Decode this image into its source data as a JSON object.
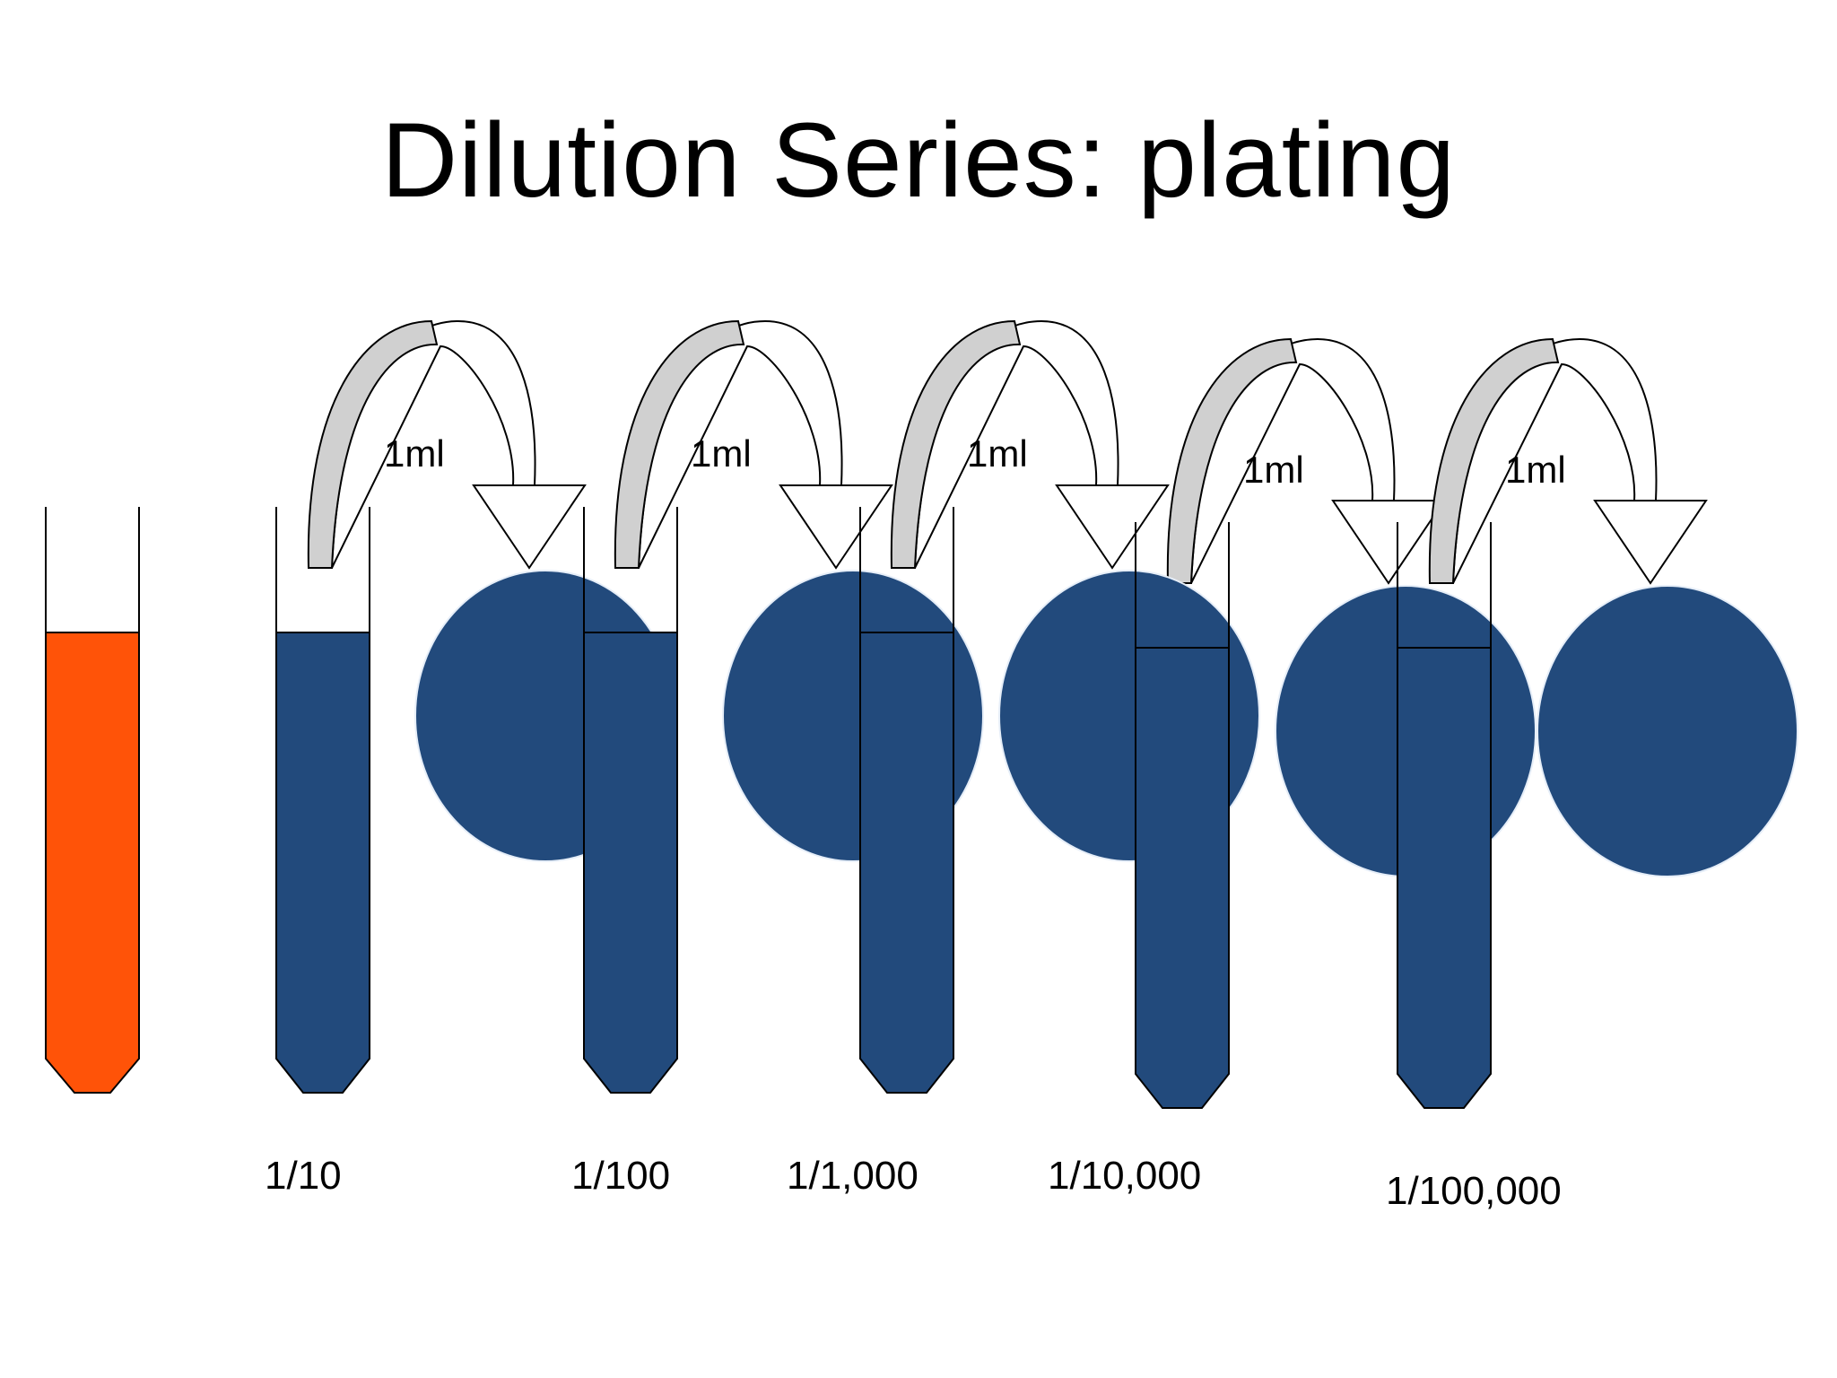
{
  "slide": {
    "title": "Dilution Series: plating"
  },
  "colors": {
    "stock_liquid": "#ff5308",
    "diluted_liquid": "#224a7c",
    "plate": "#224a7c",
    "transfer_arrow_fill": "#d0d0d0",
    "outline": "#000000"
  },
  "stock_tube": {
    "name": "stock-tube"
  },
  "transfers": [
    {
      "volume_label": "1ml"
    },
    {
      "volume_label": "1ml"
    },
    {
      "volume_label": "1ml"
    },
    {
      "volume_label": "1ml"
    },
    {
      "volume_label": "1ml"
    }
  ],
  "dilutions": [
    {
      "label": "1/10"
    },
    {
      "label": "1/100"
    },
    {
      "label": "1/1,000"
    },
    {
      "label": "1/10,000"
    },
    {
      "label": "1/100,000"
    }
  ]
}
